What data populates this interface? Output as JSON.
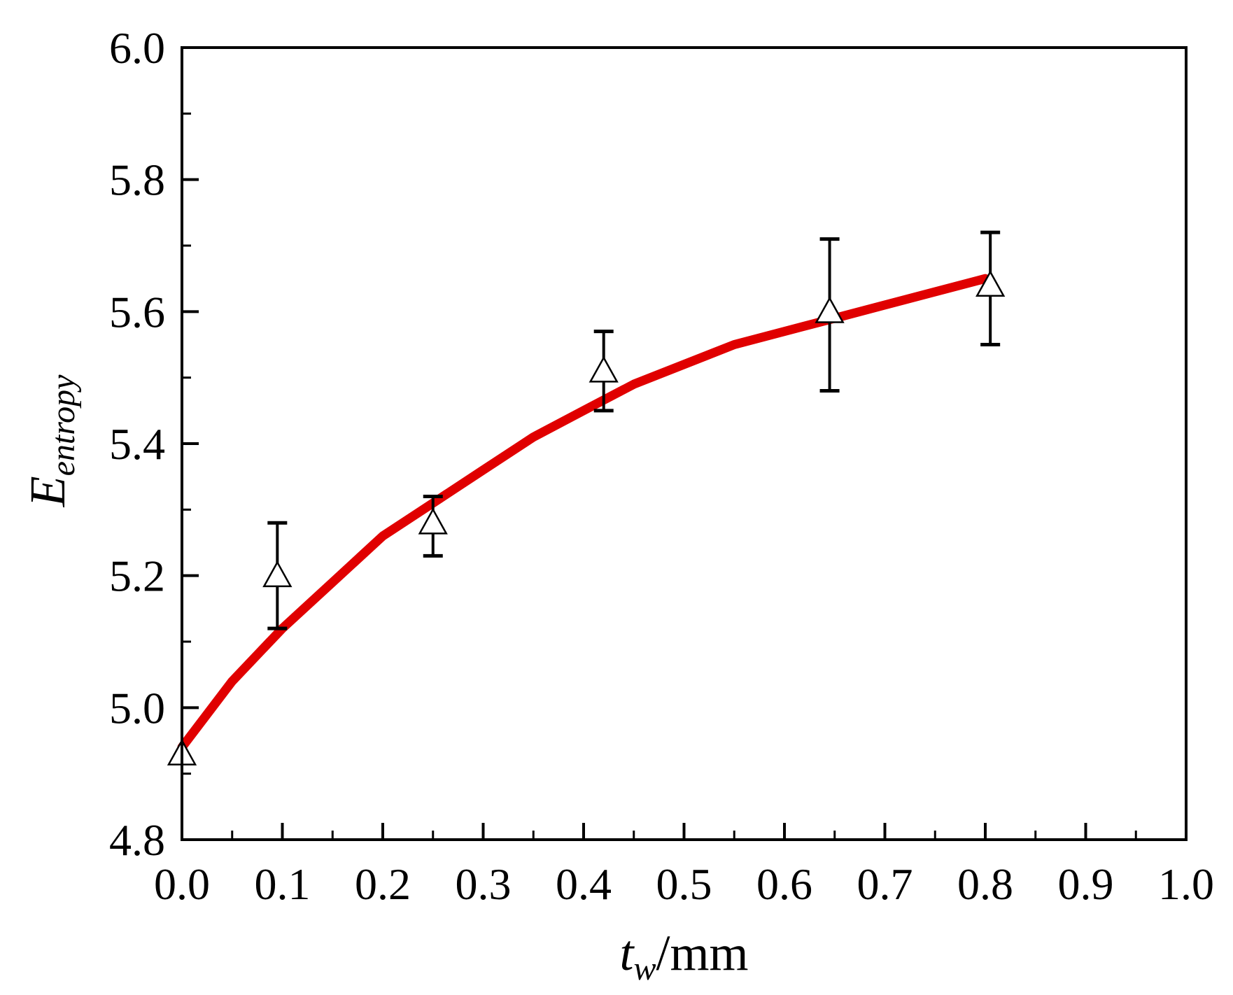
{
  "chart_data": {
    "type": "scatter",
    "title": "",
    "xlabel_main": "t",
    "xlabel_sub": "w",
    "xlabel_unit": "/mm",
    "ylabel_main": "E",
    "ylabel_sub": "entropy",
    "xlim": [
      0.0,
      1.0
    ],
    "ylim": [
      4.8,
      6.0
    ],
    "x_ticks": [
      "0.0",
      "0.1",
      "0.2",
      "0.3",
      "0.4",
      "0.5",
      "0.6",
      "0.7",
      "0.8",
      "0.9",
      "1.0"
    ],
    "y_ticks": [
      "4.8",
      "5.0",
      "5.2",
      "5.4",
      "5.6",
      "5.8",
      "6.0"
    ],
    "grid": false,
    "series": [
      {
        "type": "scatter",
        "marker": "open-triangle",
        "points": [
          {
            "x": 0.0,
            "y": 4.93,
            "err_low": null,
            "err_high": null
          },
          {
            "x": 0.095,
            "y": 5.2,
            "err_low": 5.12,
            "err_high": 5.28
          },
          {
            "x": 0.25,
            "y": 5.28,
            "err_low": 5.23,
            "err_high": 5.32
          },
          {
            "x": 0.42,
            "y": 5.51,
            "err_low": 5.45,
            "err_high": 5.57
          },
          {
            "x": 0.645,
            "y": 5.6,
            "err_low": 5.48,
            "err_high": 5.71
          },
          {
            "x": 0.805,
            "y": 5.64,
            "err_low": 5.55,
            "err_high": 5.72
          }
        ]
      },
      {
        "type": "line",
        "color": "#e00000",
        "x": [
          0.0,
          0.05,
          0.1,
          0.15,
          0.2,
          0.25,
          0.3,
          0.35,
          0.4,
          0.45,
          0.5,
          0.55,
          0.6,
          0.65,
          0.7,
          0.75,
          0.8
        ],
        "y": [
          4.94,
          5.04,
          5.12,
          5.19,
          5.26,
          5.31,
          5.36,
          5.41,
          5.45,
          5.49,
          5.52,
          5.55,
          5.57,
          5.59,
          5.61,
          5.63,
          5.65
        ]
      }
    ]
  }
}
